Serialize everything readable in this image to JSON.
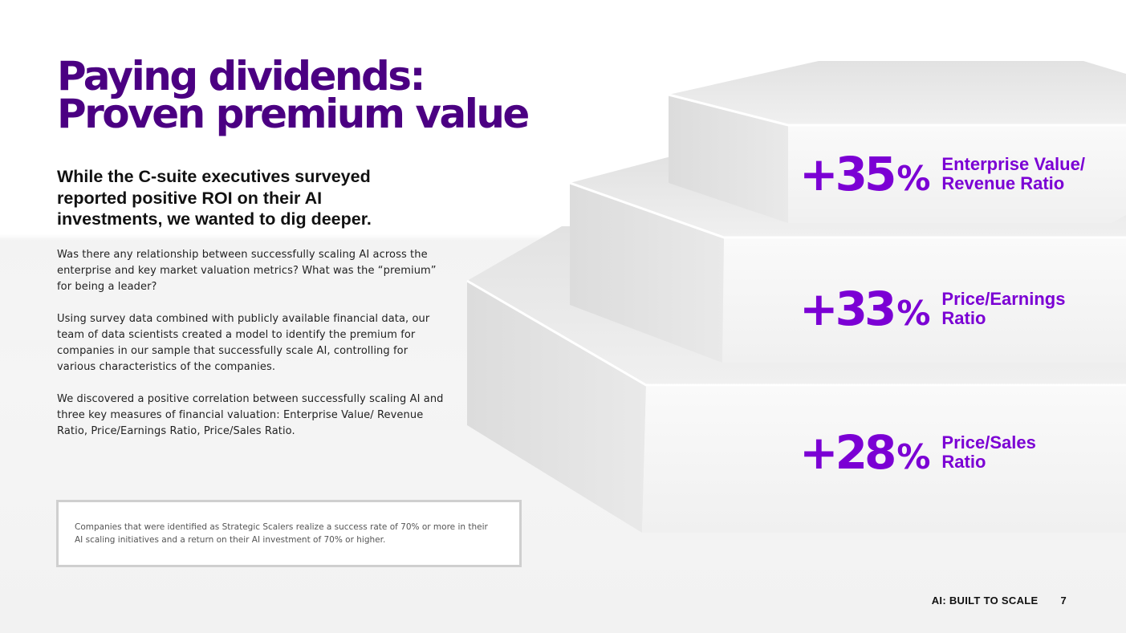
{
  "title": {
    "line1": "Paying dividends:",
    "line2": "Proven premium value"
  },
  "subtitle": "While the C-suite executives surveyed reported positive ROI on their AI investments, we wanted to dig deeper.",
  "body": {
    "para1": "Was there any relationship between successfully scaling AI across the enterprise and key market valuation metrics? What was the “premium” for being a leader?",
    "para2": "Using survey data combined with publicly available financial data, our team of data scientists created a model to identify the premium for companies in our sample that successfully scale AI, controlling for various characteristics of the companies.",
    "para3": "We discovered a positive correlation between successfully scaling AI and three key measures of financial valuation: Enterprise Value/ Revenue Ratio, Price/Earnings Ratio, Price/Sales Ratio."
  },
  "note": "Companies that were identified as Strategic Scalers realize a success rate of 70% or more in their AI scaling initiatives and a return on their AI investment of 70% or higher.",
  "stats": [
    {
      "value": "+35",
      "unit": "%",
      "label_line1": "Enterprise Value/",
      "label_line2": "Revenue Ratio"
    },
    {
      "value": "+33",
      "unit": "%",
      "label_line1": "Price/Earnings",
      "label_line2": "Ratio"
    },
    {
      "value": "+28",
      "unit": "%",
      "label_line1": "Price/Sales",
      "label_line2": "Ratio"
    }
  ],
  "footer": {
    "report_name": "AI: BUILT TO SCALE",
    "page_number": "7"
  },
  "colors": {
    "title": "#4b0082",
    "accent": "#7b00d4"
  }
}
